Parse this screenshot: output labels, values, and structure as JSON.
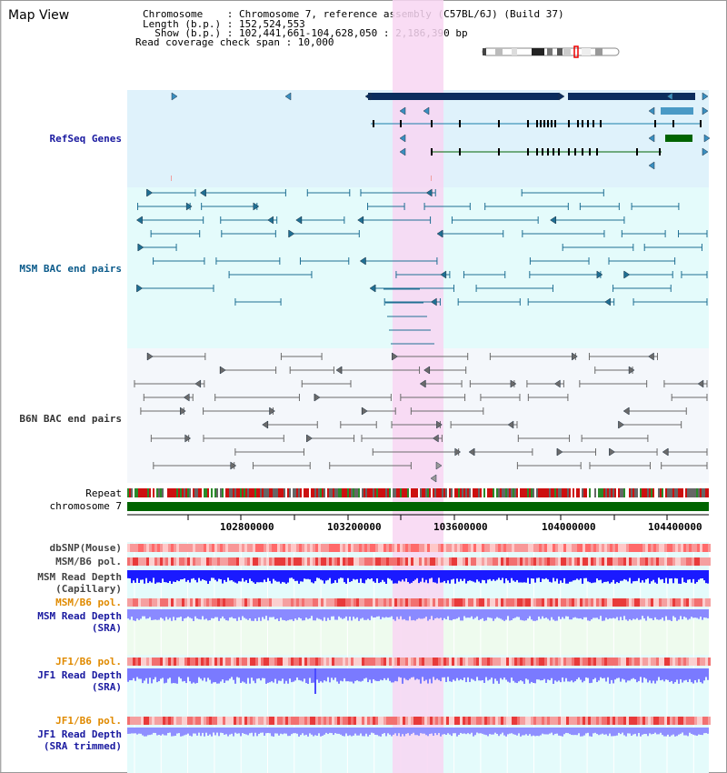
{
  "title": "Map View",
  "info": {
    "line1": "Chromosome    : Chromosome 7, reference assembly (C57BL/6J) (Build 37)",
    "line2": "Length (b.p.) : 152,524,553",
    "line3": "  Show (b.p.) : 102,441,661-104,628,050 : 2,186,390 bp",
    "line4": "Read coverage check span : 10,000"
  },
  "tracks": {
    "refseq": "RefSeq Genes",
    "msm_bac": "MSM BAC end pairs",
    "b6n_bac": "B6N BAC end pairs",
    "repeat": "Repeat",
    "chromosome": "chromosome 7",
    "dbsnp": "dbSNP(Mouse)",
    "msm_b6_pol_1": "MSM/B6 pol.",
    "msm_read_depth_cap_1": "MSM Read Depth",
    "msm_read_depth_cap_2": "(Capillary)",
    "msm_b6_pol_2": "MSM/B6 pol.",
    "msm_read_depth_sra_1": "MSM Read Depth",
    "msm_read_depth_sra_2": "(SRA)",
    "jf1_b6_pol_1": "JF1/B6 pol.",
    "jf1_read_depth_sra_1": "JF1 Read Depth",
    "jf1_read_depth_sra_2": "(SRA)",
    "jf1_b6_pol_2": "JF1/B6 pol.",
    "jf1_read_depth_trim_1": "JF1 Read Depth",
    "jf1_read_depth_trim_2": "(SRA trimmed)"
  },
  "axis": {
    "ticks": [
      "102800000",
      "103200000",
      "103600000",
      "104000000",
      "104400000"
    ]
  },
  "colors": {
    "refseq_bg": "#dff2fb",
    "bac_bg": "#e4fbfb",
    "b6n_bg": "#f4f7fb",
    "highlight": "#f8d6f2",
    "gene_dark": "#0c2d5e",
    "gene_teal": "#1a7ea8",
    "gene_green": "#006400",
    "msm_bac": "#1f6f93",
    "b6n_bac": "#6b6b6b",
    "chromosome": "#006400",
    "label_blue": "#1a1aa0",
    "label_orange": "#e08a00",
    "label_dark": "#333333",
    "msm_label": "#0a5a8a"
  }
}
